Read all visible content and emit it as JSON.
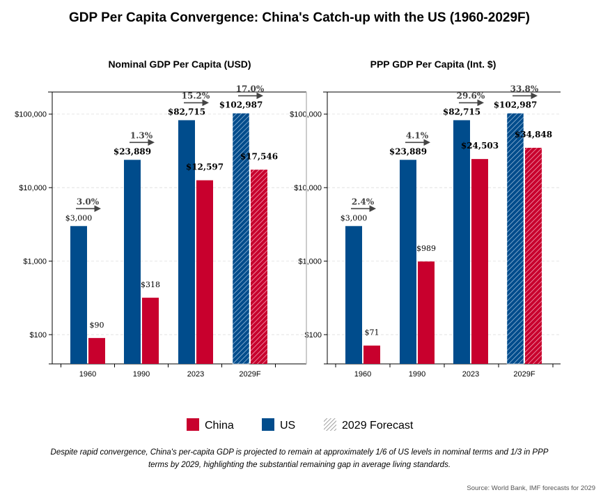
{
  "title": "GDP Per Capita Convergence: China's Catch-up with the US (1960-2029F)",
  "colors": {
    "china": "#c8002d",
    "us": "#004c8c",
    "hatch_legend": "#888888",
    "arrow": "#444444"
  },
  "legend": {
    "china": "China",
    "us": "US",
    "forecast": "2029 Forecast"
  },
  "caption": [
    "Despite rapid convergence, China's per-capita GDP is projected to remain at approximately 1/6 of US levels in nominal terms and 1/3 in PPP",
    "terms by 2029, highlighting the substantial remaining gap in average living standards."
  ],
  "source": "Source: World Bank, IMF forecasts for 2029",
  "chart_data": [
    {
      "type": "bar",
      "title": "Nominal GDP Per Capita (USD)",
      "yscale": "log",
      "ylim": [
        40,
        200000
      ],
      "yticks": [
        100,
        1000,
        10000,
        100000
      ],
      "ytick_labels": [
        "$100",
        "$1,000",
        "$10,000",
        "$100,000"
      ],
      "categories": [
        "1960",
        "1990",
        "2023",
        "2029F"
      ],
      "forecast": [
        false,
        false,
        false,
        true
      ],
      "series": [
        {
          "name": "US",
          "values": [
            3000,
            23889,
            82715,
            102987
          ],
          "labels": [
            "$3,000",
            "$23,889",
            "$82,715",
            "$102,987"
          ]
        },
        {
          "name": "China",
          "values": [
            90,
            318,
            12597,
            17546
          ],
          "labels": [
            "$90",
            "$318",
            "$12,597",
            "$17,546"
          ]
        }
      ],
      "ratio_labels": [
        "3.0%",
        "1.3%",
        "15.2%",
        "17.0%"
      ]
    },
    {
      "type": "bar",
      "title": "PPP GDP Per Capita (Int. $)",
      "yscale": "log",
      "ylim": [
        40,
        200000
      ],
      "yticks": [
        100,
        1000,
        10000,
        100000
      ],
      "ytick_labels": [
        "$100",
        "$1,000",
        "$10,000",
        "$100,000"
      ],
      "categories": [
        "1960",
        "1990",
        "2023",
        "2029F"
      ],
      "forecast": [
        false,
        false,
        false,
        true
      ],
      "series": [
        {
          "name": "US",
          "values": [
            3000,
            23889,
            82715,
            102987
          ],
          "labels": [
            "$3,000",
            "$23,889",
            "$82,715",
            "$102,987"
          ]
        },
        {
          "name": "China",
          "values": [
            71,
            989,
            24503,
            34848
          ],
          "labels": [
            "$71",
            "$989",
            "$24,503",
            "$34,848"
          ]
        }
      ],
      "ratio_labels": [
        "2.4%",
        "4.1%",
        "29.6%",
        "33.8%"
      ]
    }
  ]
}
